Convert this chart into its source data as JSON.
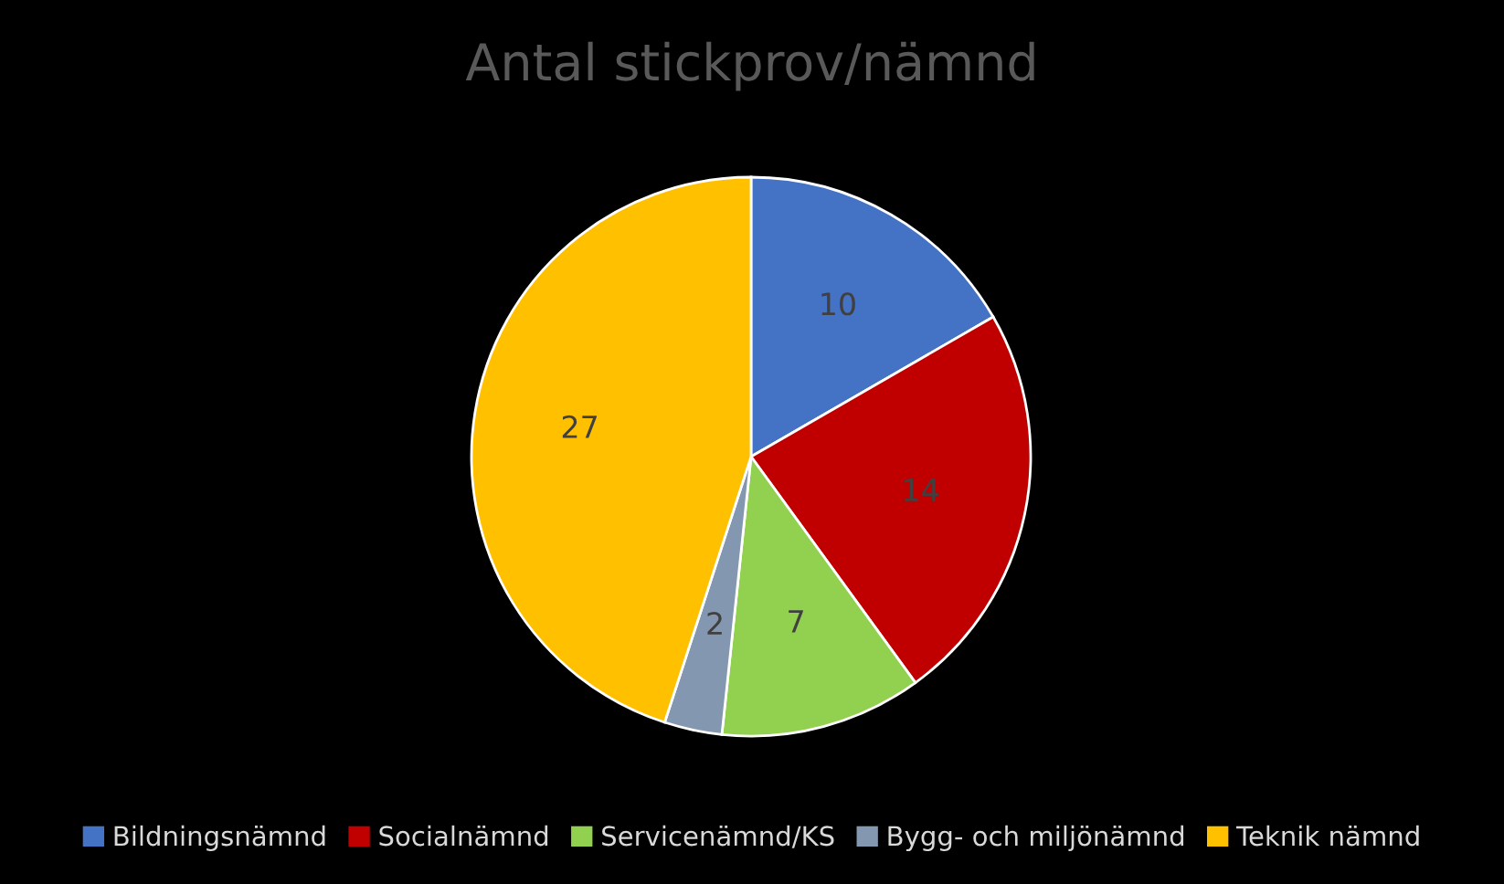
{
  "chart_data": {
    "type": "pie",
    "title": "Antal stickprov/nämnd",
    "categories": [
      "Bildningsnämnd",
      "Socialnämnd",
      "Servicenämnd/KS",
      "Bygg- och miljönämnd",
      "Teknik nämnd"
    ],
    "values": [
      10,
      14,
      7,
      2,
      27
    ],
    "colors": [
      "#4472c4",
      "#c00000",
      "#92d050",
      "#8497b0",
      "#ffc000"
    ],
    "data_labels": true,
    "legend": "bottom"
  }
}
